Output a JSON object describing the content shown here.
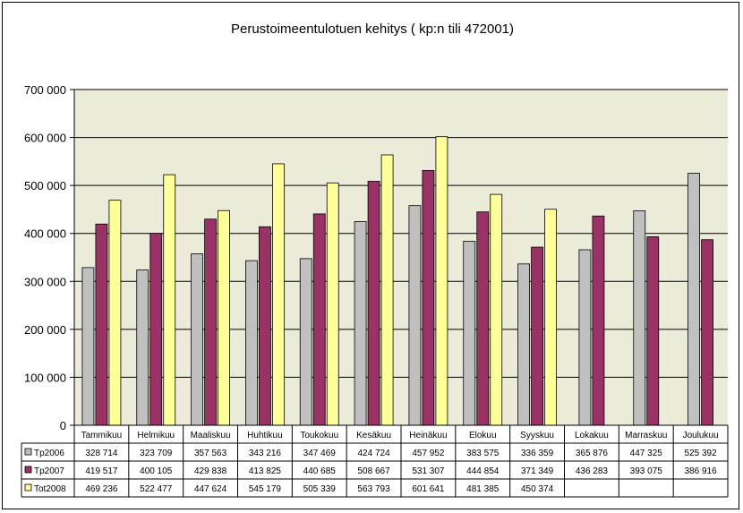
{
  "chart_data": {
    "type": "bar",
    "title": "Perustoimeentulotuen kehitys ( kp:n tili 472001)",
    "categories": [
      "Tammikuu",
      "Helmikuu",
      "Maaliskuu",
      "Huhtikuu",
      "Toukokuu",
      "Kesäkuu",
      "Heinäkuu",
      "Elokuu",
      "Syyskuu",
      "Lokakuu",
      "Marraskuu",
      "Joulukuu"
    ],
    "series": [
      {
        "name": "Tp2006",
        "color": "#c0c0c0",
        "values": [
          328714,
          323709,
          357563,
          343216,
          347469,
          424724,
          457952,
          383575,
          336359,
          365876,
          447325,
          525392
        ],
        "labels": [
          "328 714",
          "323 709",
          "357 563",
          "343 216",
          "347 469",
          "424 724",
          "457 952",
          "383 575",
          "336 359",
          "365 876",
          "447 325",
          "525 392"
        ]
      },
      {
        "name": "Tp2007",
        "color": "#993366",
        "values": [
          419517,
          400105,
          429838,
          413825,
          440685,
          508667,
          531307,
          444854,
          371349,
          436283,
          393075,
          386916
        ],
        "labels": [
          "419 517",
          "400 105",
          "429 838",
          "413 825",
          "440 685",
          "508 667",
          "531 307",
          "444 854",
          "371 349",
          "436 283",
          "393 075",
          "386 916"
        ]
      },
      {
        "name": "Tot2008",
        "color": "#ffff99",
        "values": [
          469236,
          522477,
          447624,
          545179,
          505339,
          563793,
          601641,
          481385,
          450374,
          null,
          null,
          null
        ],
        "labels": [
          "469 236",
          "522 477",
          "447 624",
          "545 179",
          "505 339",
          "563 793",
          "601 641",
          "481 385",
          "450 374",
          "",
          "",
          ""
        ]
      }
    ],
    "ylim": [
      0,
      700000
    ],
    "yticks": [
      0,
      100000,
      200000,
      300000,
      400000,
      500000,
      600000,
      700000
    ],
    "ytick_labels": [
      "0",
      "100 000",
      "200 000",
      "300 000",
      "400 000",
      "500 000",
      "600 000",
      "700 000"
    ],
    "grid": true,
    "plot_background": "#ecead8",
    "legend": "data-table-below"
  }
}
